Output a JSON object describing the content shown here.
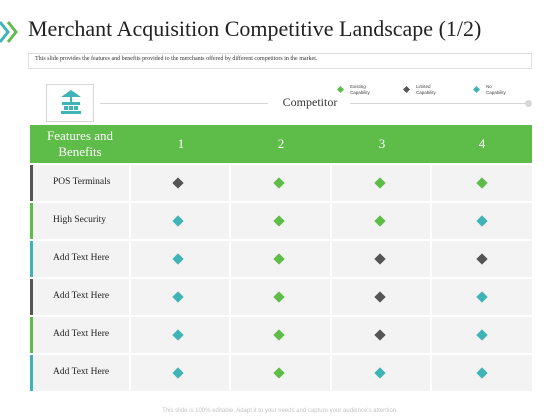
{
  "title": "Merchant Acquisition Competitive Landscape (1/2)",
  "subtitle": "This slide provides the features and benefits provided to the merchants offered by different competitors in the market.",
  "competitor_label": "Competitor",
  "footer": "This slide is 100% editable. Adapt it to your needs and capture your audience's attention.",
  "colors": {
    "green": "#5ebc49",
    "dark": "#555555",
    "teal": "#3fb3b5",
    "row_bg": "#f3f3f3"
  },
  "legend": [
    {
      "label": "Existing Capability",
      "line1": "Existing",
      "line2": "Capability",
      "color": "#5ebc49"
    },
    {
      "label": "Limited Capability",
      "line1": "Limited",
      "line2": "Capability",
      "color": "#555555"
    },
    {
      "label": "No Capability",
      "line1": "No Capability",
      "line2": "",
      "color": "#3fb3b5"
    }
  ],
  "table": {
    "header_line1": "Features and",
    "header_line2": "Benefits",
    "columns": [
      "1",
      "2",
      "3",
      "4"
    ],
    "rows": [
      {
        "feature": "POS Terminals",
        "bar_color": "#555555",
        "marks": [
          "limited",
          "existing",
          "existing",
          "existing"
        ]
      },
      {
        "feature": "High Security",
        "bar_color": "#5ebc49",
        "marks": [
          "none",
          "existing",
          "existing",
          "none"
        ]
      },
      {
        "feature": "Add Text Here",
        "bar_color": "#3fb3b5",
        "marks": [
          "none",
          "existing",
          "limited",
          "limited"
        ]
      },
      {
        "feature": "Add Text Here",
        "bar_color": "#555555",
        "marks": [
          "none",
          "existing",
          "limited",
          "none"
        ]
      },
      {
        "feature": "Add Text Here",
        "bar_color": "#5ebc49",
        "marks": [
          "none",
          "existing",
          "limited",
          "none"
        ]
      },
      {
        "feature": "Add Text Here",
        "bar_color": "#3fb3b5",
        "marks": [
          "none",
          "existing",
          "none",
          "none"
        ]
      }
    ]
  },
  "icons": {
    "header_decoration": "chevron-right-icon",
    "logo": "merchant-store-icon"
  }
}
